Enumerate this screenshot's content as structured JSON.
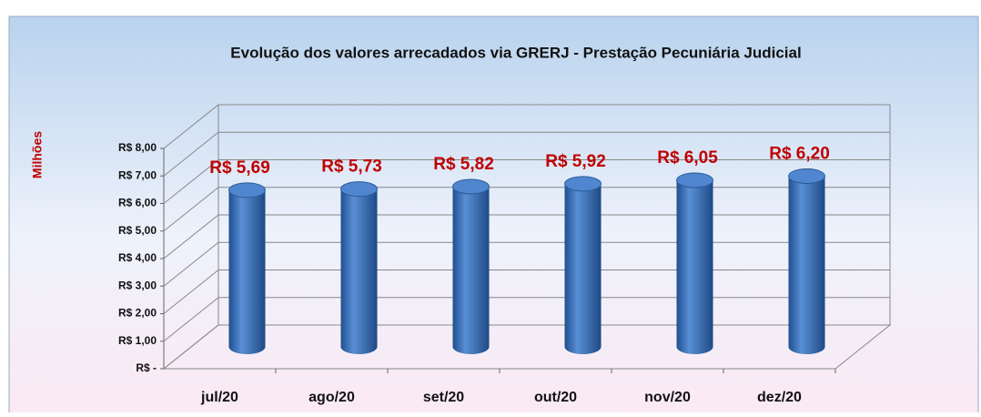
{
  "chart_data": {
    "type": "bar",
    "title": "Evolução dos valores arrecadados via GRERJ - Prestação Pecuniária Judicial",
    "y_label": "Milhões",
    "categories": [
      "jul/20",
      "ago/20",
      "set/20",
      "out/20",
      "nov/20",
      "dez/20"
    ],
    "values": [
      5.69,
      5.73,
      5.82,
      5.92,
      6.05,
      6.2
    ],
    "value_labels": [
      "R$ 5,69",
      "R$ 5,73",
      "R$ 5,82",
      "R$ 5,92",
      "R$ 6,05",
      "R$ 6,20"
    ],
    "color": "#3a6fb8",
    "ylim": [
      0,
      8
    ],
    "yticks": [
      {
        "value": 0,
        "label": "R$ -"
      },
      {
        "value": 1,
        "label": "R$ 1,00"
      },
      {
        "value": 2,
        "label": "R$ 2,00"
      },
      {
        "value": 3,
        "label": "R$ 3,00"
      },
      {
        "value": 4,
        "label": "R$ 4,00"
      },
      {
        "value": 5,
        "label": "R$ 5,00"
      },
      {
        "value": 6,
        "label": "R$ 6,00"
      },
      {
        "value": 7,
        "label": "R$ 7,00"
      },
      {
        "value": 8,
        "label": "R$ 8,00"
      }
    ],
    "grid": true
  }
}
